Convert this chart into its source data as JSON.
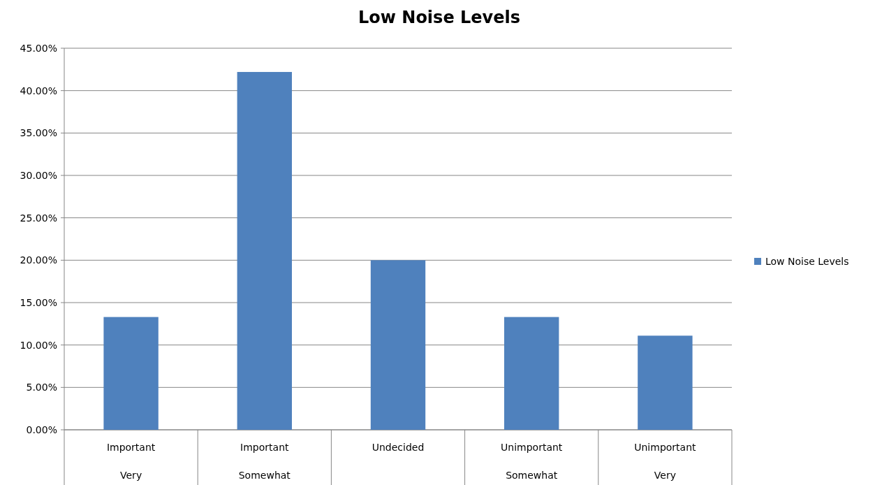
{
  "chart_data": {
    "type": "bar",
    "title": "Low Noise Levels",
    "categories": [
      "Important Very",
      "Important Somewhat",
      "Undecided",
      "Unimportant Somewhat",
      "Unimportant Very"
    ],
    "series": [
      {
        "name": "Low Noise Levels",
        "color": "#4f81bd",
        "values": [
          13.3,
          42.2,
          20,
          13.3,
          11.1
        ]
      }
    ],
    "ylim": [
      0,
      45
    ],
    "yticks": [
      {
        "value": 0,
        "label": "0.00%"
      },
      {
        "value": 5,
        "label": "5.00%"
      },
      {
        "value": 10,
        "label": "10.00%"
      },
      {
        "value": 15,
        "label": "15.00%"
      },
      {
        "value": 20,
        "label": "20.00%"
      },
      {
        "value": 25,
        "label": "25.00%"
      },
      {
        "value": 30,
        "label": "30.00%"
      },
      {
        "value": 35,
        "label": "35.00%"
      },
      {
        "value": 40,
        "label": "40.00%"
      },
      {
        "value": 45,
        "label": "45.00%"
      }
    ],
    "grid": "y",
    "legend": "right"
  }
}
